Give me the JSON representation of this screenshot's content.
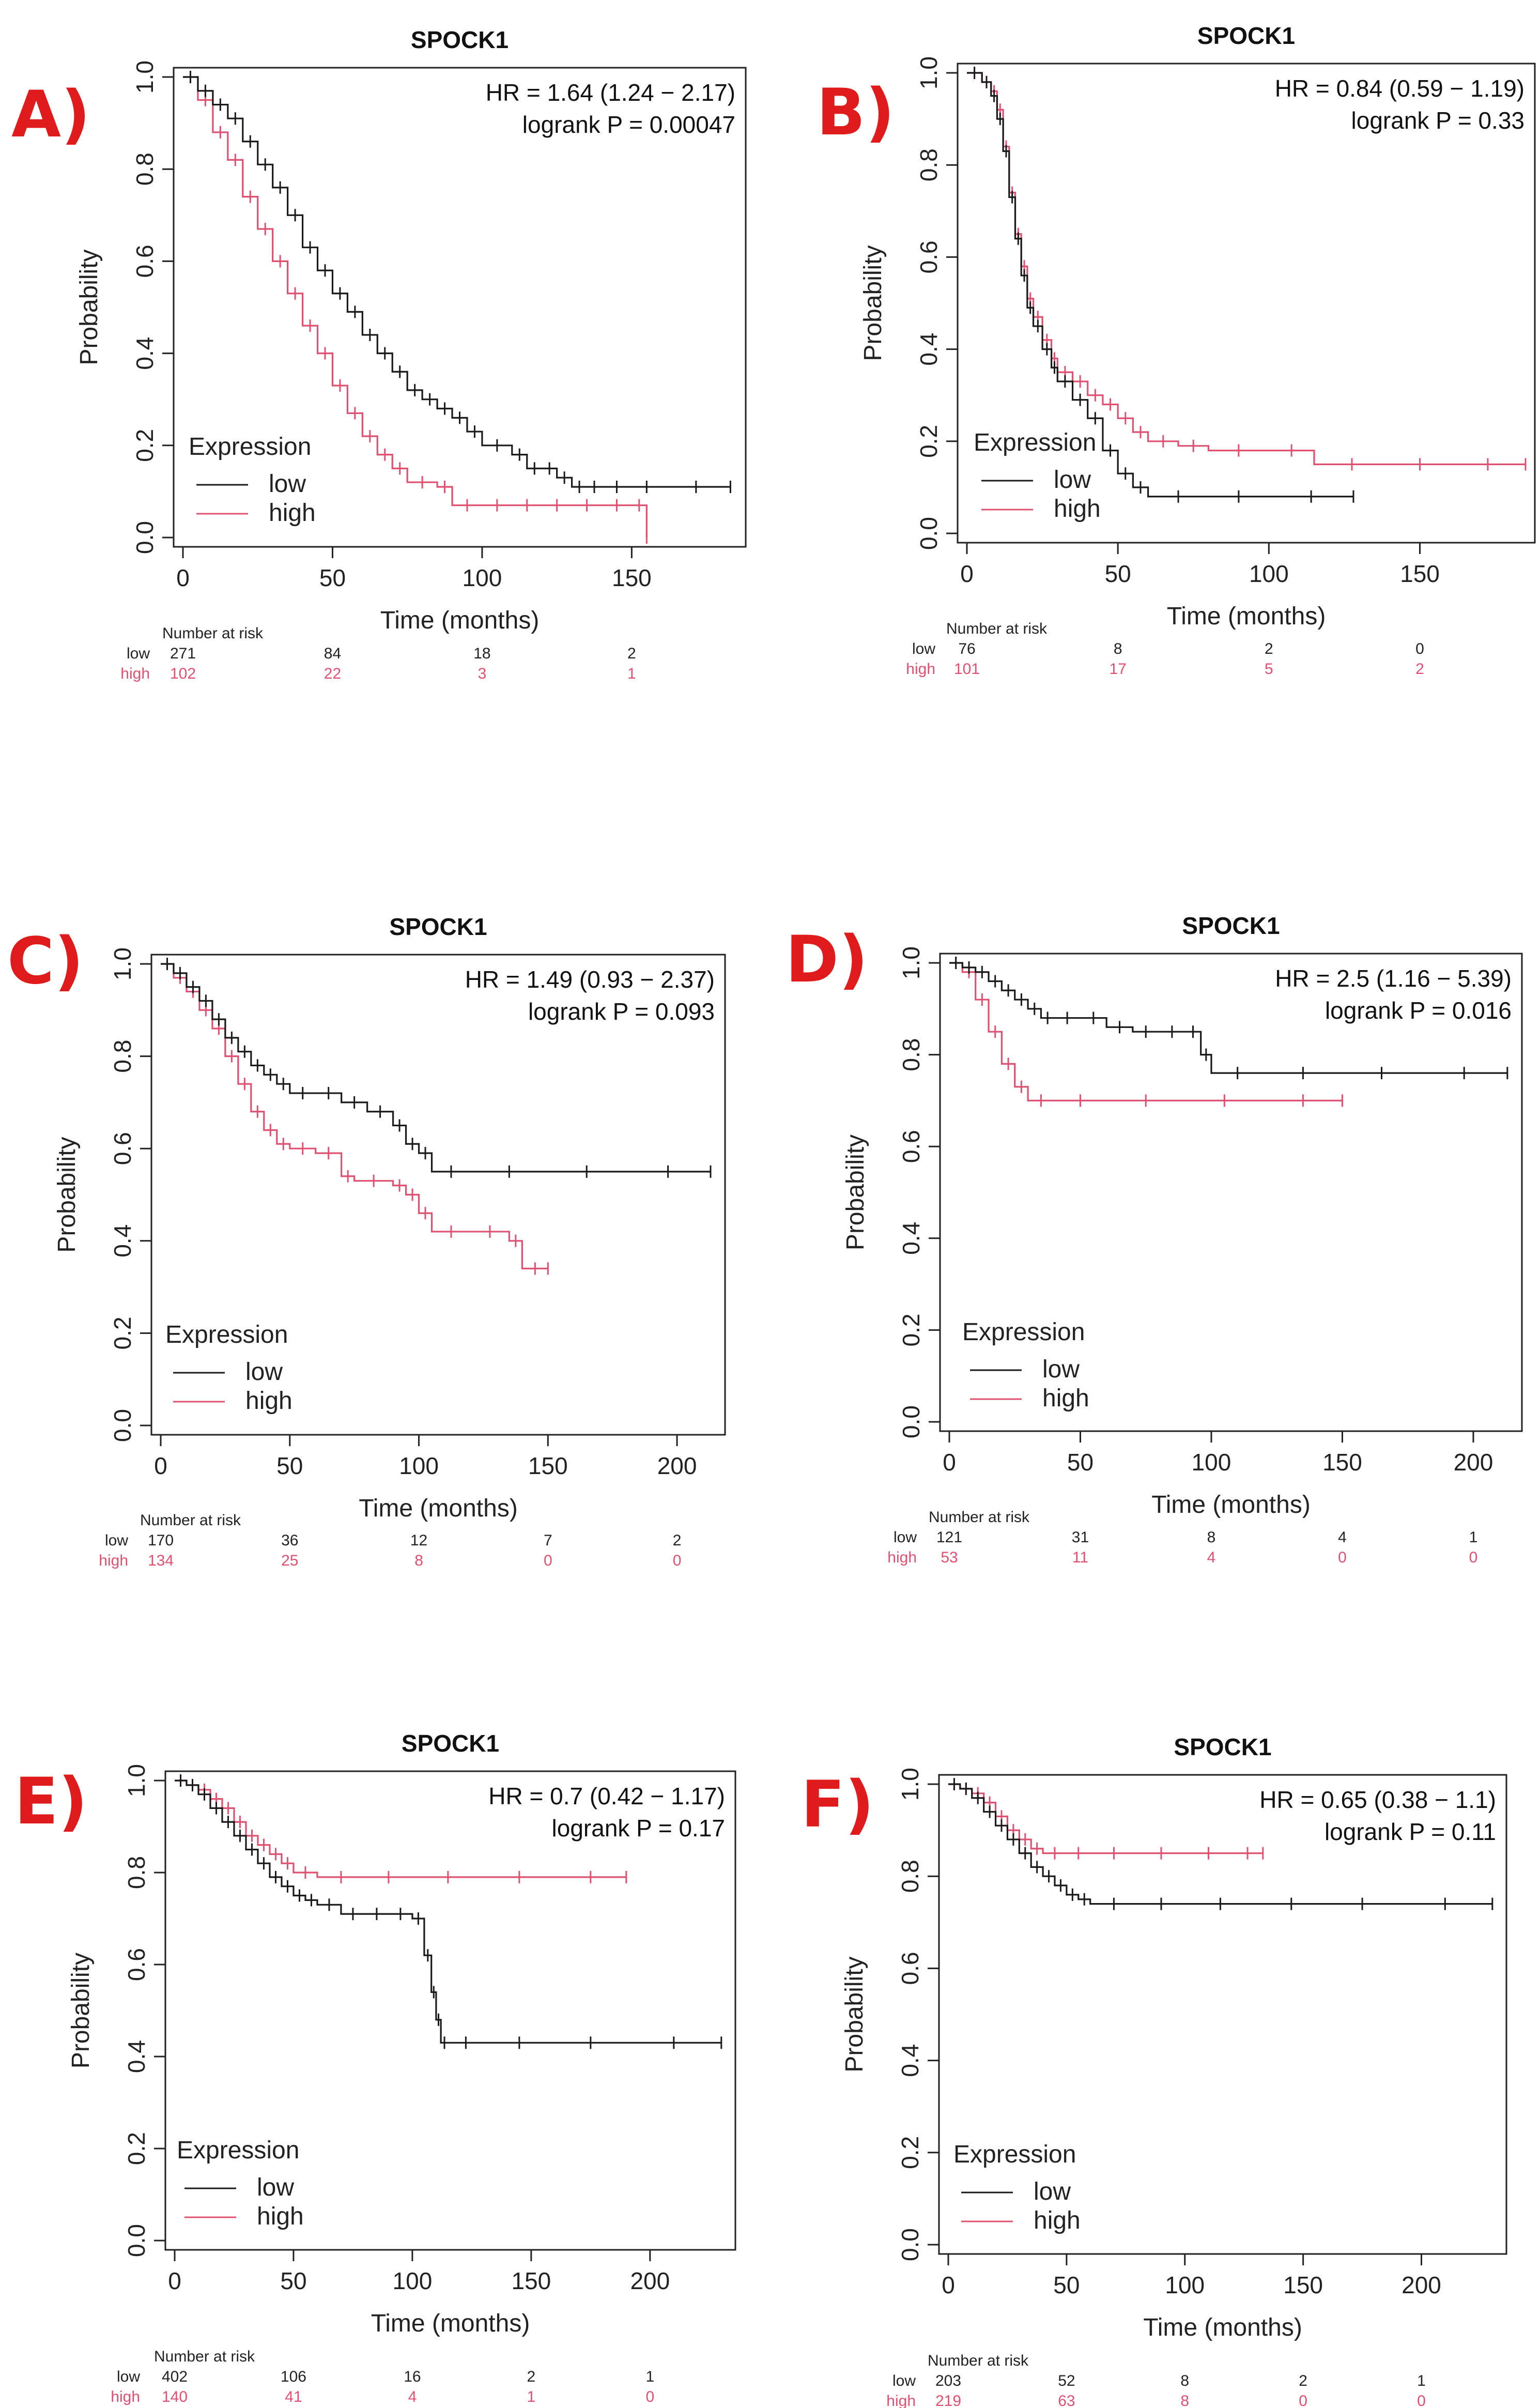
{
  "colors": {
    "low": "#1a1a1a",
    "high": "#e05070",
    "label": "#e01b1b"
  },
  "chart_data": [
    {
      "panel": "A)",
      "type": "line",
      "title": "SPOCK1",
      "xlabel": "Time (months)",
      "ylabel": "Probability",
      "xlim": [
        0,
        185
      ],
      "ylim": [
        0,
        1
      ],
      "xticks": [
        "0",
        "50",
        "100",
        "150"
      ],
      "yticks": [
        "0.0",
        "0.2",
        "0.4",
        "0.6",
        "0.8",
        "1.0"
      ],
      "hr_text": "HR = 1.64 (1.24 − 2.17)",
      "p_text": "logrank P = 0.00047",
      "legend_title": "Expression",
      "series": [
        {
          "name": "low",
          "x": [
            0,
            5,
            10,
            15,
            20,
            25,
            30,
            35,
            40,
            45,
            50,
            55,
            60,
            65,
            70,
            75,
            80,
            85,
            90,
            95,
            100,
            110,
            115,
            120,
            125,
            130,
            135,
            140,
            150,
            160,
            183
          ],
          "y": [
            1.0,
            0.97,
            0.94,
            0.91,
            0.86,
            0.81,
            0.76,
            0.7,
            0.63,
            0.58,
            0.53,
            0.49,
            0.44,
            0.4,
            0.36,
            0.32,
            0.3,
            0.28,
            0.26,
            0.23,
            0.2,
            0.18,
            0.15,
            0.15,
            0.13,
            0.11,
            0.11,
            0.11,
            0.11,
            0.11,
            0.11
          ]
        },
        {
          "name": "high",
          "x": [
            0,
            5,
            10,
            15,
            20,
            25,
            30,
            35,
            40,
            45,
            50,
            55,
            60,
            65,
            70,
            75,
            85,
            90,
            100,
            110,
            120,
            130,
            140,
            150,
            155
          ],
          "y": [
            1.0,
            0.95,
            0.88,
            0.82,
            0.74,
            0.67,
            0.6,
            0.53,
            0.46,
            0.4,
            0.33,
            0.27,
            0.22,
            0.18,
            0.15,
            0.12,
            0.11,
            0.07,
            0.07,
            0.07,
            0.07,
            0.07,
            0.07,
            0.07,
            0.0
          ]
        }
      ],
      "risk": {
        "header": "Number at risk",
        "low": [
          "271",
          "84",
          "18",
          "2"
        ],
        "high": [
          "102",
          "22",
          "3",
          "1"
        ]
      }
    },
    {
      "panel": "B)",
      "type": "line",
      "title": "SPOCK1",
      "xlabel": "Time (months)",
      "ylabel": "Probability",
      "xlim": [
        0,
        185
      ],
      "ylim": [
        0,
        1
      ],
      "xticks": [
        "0",
        "50",
        "100",
        "150"
      ],
      "yticks": [
        "0.0",
        "0.2",
        "0.4",
        "0.6",
        "0.8",
        "1.0"
      ],
      "hr_text": "HR = 0.84 (0.59 − 1.19)",
      "p_text": "logrank P = 0.33",
      "legend_title": "Expression",
      "series": [
        {
          "name": "low",
          "x": [
            0,
            5,
            8,
            10,
            12,
            14,
            16,
            18,
            20,
            22,
            25,
            28,
            30,
            35,
            40,
            45,
            50,
            55,
            60,
            80,
            100,
            128
          ],
          "y": [
            1.0,
            0.98,
            0.95,
            0.9,
            0.83,
            0.73,
            0.64,
            0.56,
            0.49,
            0.45,
            0.4,
            0.36,
            0.33,
            0.29,
            0.25,
            0.18,
            0.13,
            0.1,
            0.08,
            0.08,
            0.08,
            0.08
          ]
        },
        {
          "name": "high",
          "x": [
            0,
            5,
            8,
            10,
            12,
            14,
            16,
            18,
            20,
            22,
            25,
            28,
            30,
            35,
            40,
            45,
            50,
            55,
            60,
            70,
            80,
            100,
            115,
            140,
            160,
            185
          ],
          "y": [
            1.0,
            0.98,
            0.96,
            0.92,
            0.84,
            0.74,
            0.65,
            0.58,
            0.51,
            0.47,
            0.42,
            0.38,
            0.35,
            0.33,
            0.3,
            0.28,
            0.25,
            0.22,
            0.2,
            0.19,
            0.18,
            0.18,
            0.15,
            0.15,
            0.15,
            0.15
          ]
        }
      ],
      "risk": {
        "header": "Number at risk",
        "low": [
          "76",
          "8",
          "2",
          "0"
        ],
        "high": [
          "101",
          "17",
          "5",
          "2"
        ]
      }
    },
    {
      "panel": "C)",
      "type": "line",
      "title": "SPOCK1",
      "xlabel": "Time (months)",
      "ylabel": "Probability",
      "xlim": [
        0,
        215
      ],
      "ylim": [
        0,
        1
      ],
      "xticks": [
        "0",
        "50",
        "100",
        "150",
        "200"
      ],
      "yticks": [
        "0.0",
        "0.2",
        "0.4",
        "0.6",
        "0.8",
        "1.0"
      ],
      "hr_text": "HR = 1.49 (0.93 − 2.37)",
      "p_text": "logrank P = 0.093",
      "legend_title": "Expression",
      "series": [
        {
          "name": "low",
          "x": [
            0,
            5,
            10,
            15,
            20,
            25,
            30,
            35,
            40,
            45,
            50,
            60,
            70,
            80,
            90,
            95,
            100,
            105,
            120,
            150,
            180,
            213
          ],
          "y": [
            1.0,
            0.98,
            0.95,
            0.92,
            0.88,
            0.84,
            0.81,
            0.78,
            0.76,
            0.74,
            0.72,
            0.72,
            0.7,
            0.68,
            0.65,
            0.61,
            0.59,
            0.55,
            0.55,
            0.55,
            0.55,
            0.55
          ]
        },
        {
          "name": "high",
          "x": [
            0,
            5,
            10,
            15,
            20,
            25,
            30,
            35,
            40,
            45,
            50,
            60,
            70,
            75,
            90,
            95,
            100,
            105,
            120,
            135,
            140,
            150
          ],
          "y": [
            1.0,
            0.97,
            0.94,
            0.9,
            0.86,
            0.8,
            0.74,
            0.68,
            0.64,
            0.61,
            0.6,
            0.59,
            0.54,
            0.53,
            0.52,
            0.5,
            0.46,
            0.42,
            0.42,
            0.4,
            0.34,
            0.34
          ]
        }
      ],
      "risk": {
        "header": "Number at risk",
        "low": [
          "170",
          "36",
          "12",
          "7",
          "2"
        ],
        "high": [
          "134",
          "25",
          "8",
          "0",
          "0"
        ]
      }
    },
    {
      "panel": "D)",
      "type": "line",
      "title": "SPOCK1",
      "xlabel": "Time (months)",
      "ylabel": "Probability",
      "xlim": [
        0,
        215
      ],
      "ylim": [
        0,
        1
      ],
      "xticks": [
        "0",
        "50",
        "100",
        "150",
        "200"
      ],
      "yticks": [
        "0.0",
        "0.2",
        "0.4",
        "0.6",
        "0.8",
        "1.0"
      ],
      "hr_text": "HR = 2.5 (1.16 − 5.39)",
      "p_text": "logrank P = 0.016",
      "legend_title": "Expression",
      "series": [
        {
          "name": "low",
          "x": [
            0,
            5,
            10,
            15,
            20,
            25,
            30,
            35,
            40,
            50,
            60,
            70,
            80,
            90,
            96,
            100,
            120,
            150,
            180,
            213
          ],
          "y": [
            1.0,
            0.99,
            0.98,
            0.96,
            0.94,
            0.92,
            0.9,
            0.88,
            0.88,
            0.88,
            0.86,
            0.85,
            0.85,
            0.85,
            0.8,
            0.76,
            0.76,
            0.76,
            0.76,
            0.76
          ]
        },
        {
          "name": "high",
          "x": [
            0,
            5,
            10,
            15,
            20,
            25,
            30,
            40,
            60,
            90,
            120,
            150
          ],
          "y": [
            1.0,
            0.98,
            0.92,
            0.85,
            0.78,
            0.73,
            0.7,
            0.7,
            0.7,
            0.7,
            0.7,
            0.7
          ]
        }
      ],
      "risk": {
        "header": "Number at risk",
        "low": [
          "121",
          "31",
          "8",
          "4",
          "1"
        ],
        "high": [
          "53",
          "11",
          "4",
          "0",
          "0"
        ]
      }
    },
    {
      "panel": "E)",
      "type": "line",
      "title": "SPOCK1",
      "xlabel": "Time (months)",
      "ylabel": "Probability",
      "xlim": [
        0,
        232
      ],
      "ylim": [
        0,
        1
      ],
      "xticks": [
        "0",
        "50",
        "100",
        "150",
        "200"
      ],
      "yticks": [
        "0.0",
        "0.2",
        "0.4",
        "0.6",
        "0.8",
        "1.0"
      ],
      "hr_text": "HR = 0.7 (0.42 − 1.17)",
      "p_text": "logrank P = 0.17",
      "legend_title": "Expression",
      "series": [
        {
          "name": "low",
          "x": [
            0,
            5,
            10,
            15,
            20,
            25,
            30,
            35,
            40,
            45,
            50,
            55,
            60,
            70,
            80,
            90,
            100,
            105,
            108,
            110,
            112,
            115,
            130,
            160,
            190,
            230
          ],
          "y": [
            1.0,
            0.99,
            0.97,
            0.94,
            0.91,
            0.88,
            0.85,
            0.82,
            0.79,
            0.77,
            0.75,
            0.74,
            0.73,
            0.71,
            0.71,
            0.71,
            0.7,
            0.62,
            0.54,
            0.48,
            0.43,
            0.43,
            0.43,
            0.43,
            0.43,
            0.43
          ]
        },
        {
          "name": "high",
          "x": [
            0,
            5,
            10,
            15,
            20,
            25,
            30,
            35,
            40,
            45,
            50,
            60,
            80,
            100,
            130,
            160,
            190
          ],
          "y": [
            1.0,
            0.99,
            0.98,
            0.96,
            0.94,
            0.91,
            0.88,
            0.86,
            0.84,
            0.82,
            0.8,
            0.79,
            0.79,
            0.79,
            0.79,
            0.79,
            0.79
          ]
        }
      ],
      "risk": {
        "header": "Number at risk",
        "low": [
          "402",
          "106",
          "16",
          "2",
          "1"
        ],
        "high": [
          "140",
          "41",
          "4",
          "1",
          "0"
        ]
      }
    },
    {
      "panel": "F)",
      "type": "line",
      "title": "SPOCK1",
      "xlabel": "Time (months)",
      "ylabel": "Probability",
      "xlim": [
        0,
        232
      ],
      "ylim": [
        0,
        1
      ],
      "xticks": [
        "0",
        "50",
        "100",
        "150",
        "200"
      ],
      "yticks": [
        "0.0",
        "0.2",
        "0.4",
        "0.6",
        "0.8",
        "1.0"
      ],
      "hr_text": "HR = 0.65 (0.38 − 1.1)",
      "p_text": "logrank P = 0.11",
      "legend_title": "Expression",
      "series": [
        {
          "name": "low",
          "x": [
            0,
            5,
            10,
            15,
            20,
            25,
            30,
            35,
            40,
            45,
            50,
            55,
            60,
            80,
            100,
            130,
            160,
            190,
            230
          ],
          "y": [
            1.0,
            0.99,
            0.97,
            0.94,
            0.91,
            0.88,
            0.85,
            0.82,
            0.8,
            0.78,
            0.76,
            0.75,
            0.74,
            0.74,
            0.74,
            0.74,
            0.74,
            0.74,
            0.74
          ]
        },
        {
          "name": "high",
          "x": [
            0,
            5,
            10,
            15,
            20,
            25,
            30,
            35,
            40,
            50,
            60,
            80,
            100,
            120,
            133
          ],
          "y": [
            1.0,
            0.99,
            0.98,
            0.96,
            0.93,
            0.9,
            0.88,
            0.86,
            0.85,
            0.85,
            0.85,
            0.85,
            0.85,
            0.85,
            0.85
          ]
        }
      ],
      "risk": {
        "header": "Number at risk",
        "low": [
          "203",
          "52",
          "8",
          "2",
          "1"
        ],
        "high": [
          "219",
          "63",
          "8",
          "0",
          "0"
        ]
      }
    }
  ]
}
